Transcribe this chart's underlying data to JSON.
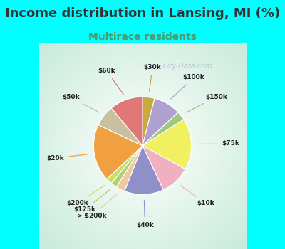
{
  "title": "Income distribution in Lansing, MI (%)",
  "subtitle": "Multirace residents",
  "title_fontsize": 13,
  "subtitle_fontsize": 10,
  "title_color": "#333333",
  "subtitle_color": "#4a9a70",
  "background_color": "#00FFFF",
  "watermark": "City-Data.com",
  "labels": [
    "$30k",
    "$100k",
    "$150k",
    "$75k",
    "$10k",
    "$40k",
    "> $200k",
    "$125k",
    "$200k",
    "$20k",
    "$50k",
    "$60k"
  ],
  "values": [
    4,
    9,
    3,
    17,
    10,
    13,
    3,
    2,
    2,
    19,
    7,
    11
  ],
  "colors": [
    "#c8aa40",
    "#b0a0d0",
    "#a0c880",
    "#f0f060",
    "#f0b0c0",
    "#9090c8",
    "#f0c8a0",
    "#b0d070",
    "#c8e060",
    "#f0a040",
    "#c8c0a0",
    "#e07878"
  ],
  "label_colors": [
    "#c8aa40",
    "#b0a0d0",
    "#a0c880",
    "#f0f060",
    "#f0b0c0",
    "#9090c8",
    "#f0c8a0",
    "#b0d070",
    "#c8e060",
    "#f0a040",
    "#c8c0a0",
    "#e07878"
  ]
}
